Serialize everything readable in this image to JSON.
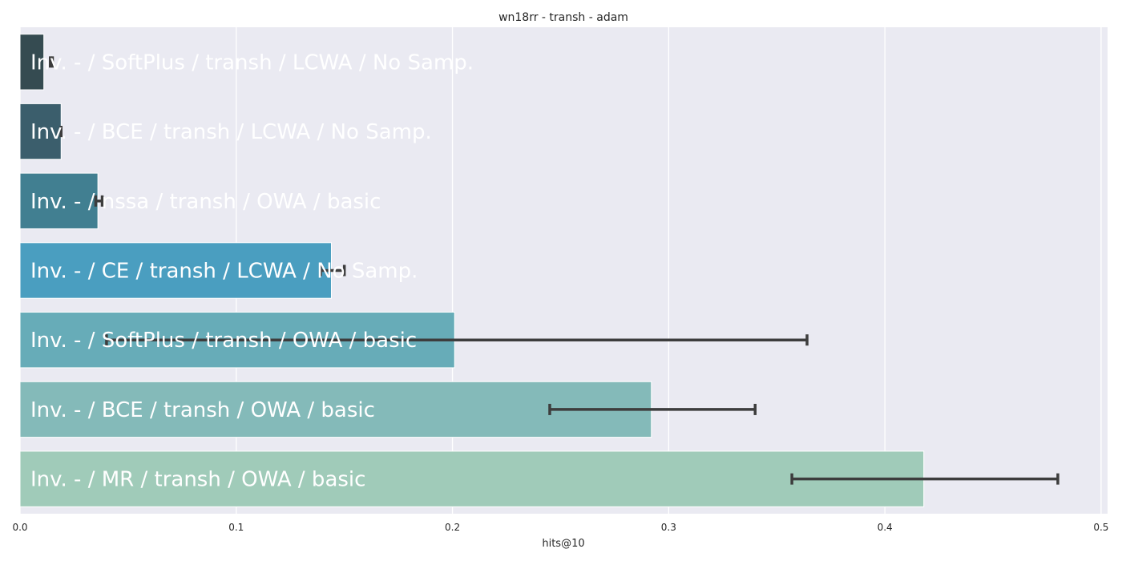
{
  "chart_data": {
    "type": "bar",
    "orientation": "horizontal",
    "title": "wn18rr - transh - adam",
    "xlabel": "hits@10",
    "ylabel": "",
    "xlim": [
      0.0,
      0.503
    ],
    "xticks": [
      "0.0",
      "0.1",
      "0.2",
      "0.3",
      "0.4",
      "0.5"
    ],
    "grid": true,
    "categories": [
      "Inv. - / SoftPlus / transh / LCWA / No Samp.",
      "Inv. - / BCE / transh / LCWA / No Samp.",
      "Inv. - / nssa / transh / OWA / basic",
      "Inv. - / CE / transh / LCWA / No Samp.",
      "Inv. - / SoftPlus / transh / OWA / basic",
      "Inv. - / BCE / transh / OWA / basic",
      "Inv. - / MR / transh / OWA / basic"
    ],
    "values": [
      0.011,
      0.019,
      0.036,
      0.144,
      0.201,
      0.292,
      0.418
    ],
    "error_low": [
      0.014,
      0.019,
      0.035,
      0.139,
      0.04,
      0.245,
      0.357
    ],
    "error_high": [
      0.015,
      0.019,
      0.038,
      0.15,
      0.364,
      0.34,
      0.48
    ],
    "colors": [
      "#354b51",
      "#3b5e6c",
      "#417f91",
      "#4a9ec0",
      "#67acb8",
      "#84bab9",
      "#a0cbb9"
    ]
  }
}
